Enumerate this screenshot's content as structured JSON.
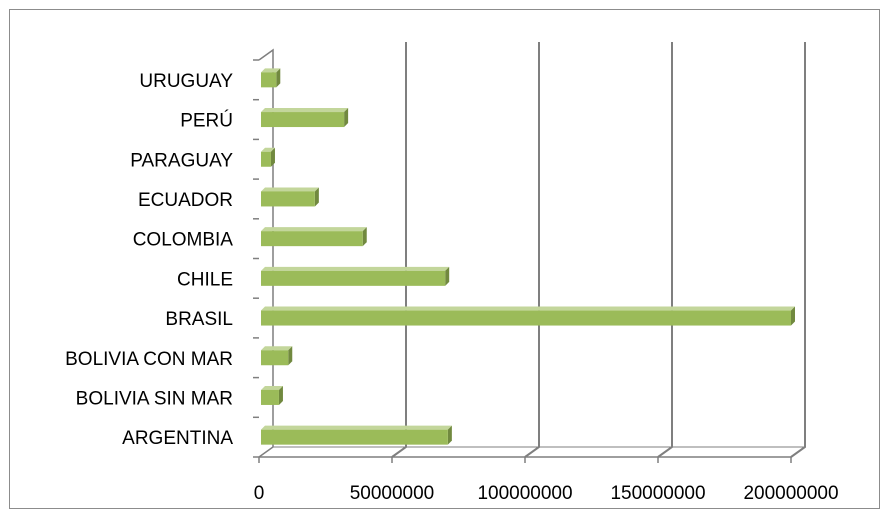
{
  "chart_data": {
    "type": "bar",
    "orientation": "horizontal",
    "style": "3d",
    "categories": [
      "ARGENTINA",
      "BOLIVIA SIN MAR",
      "BOLIVIA CON MAR",
      "BRASIL",
      "CHILE",
      "COLOMBIA",
      "ECUADOR",
      "PARAGUAY",
      "PERÚ",
      "URUGUAY"
    ],
    "values": [
      71000000,
      7500000,
      11000000,
      200000000,
      70000000,
      39000000,
      21000000,
      4500000,
      32000000,
      6500000
    ],
    "xlim": [
      0,
      200000000
    ],
    "xticks": [
      0,
      50000000,
      100000000,
      150000000,
      200000000
    ],
    "xtick_labels": [
      "0",
      "50000000",
      "100000000",
      "150000000",
      "200000000"
    ],
    "title": "",
    "xlabel": "",
    "ylabel": "",
    "grid": "vertical",
    "legend": "none",
    "colors": {
      "bar_front": "#9bbb59",
      "bar_top": "#c3d69b",
      "bar_side": "#71893f",
      "grid": "#7f7f7f",
      "axis": "#7f7f7f",
      "frame": "#8c8c8c"
    }
  }
}
